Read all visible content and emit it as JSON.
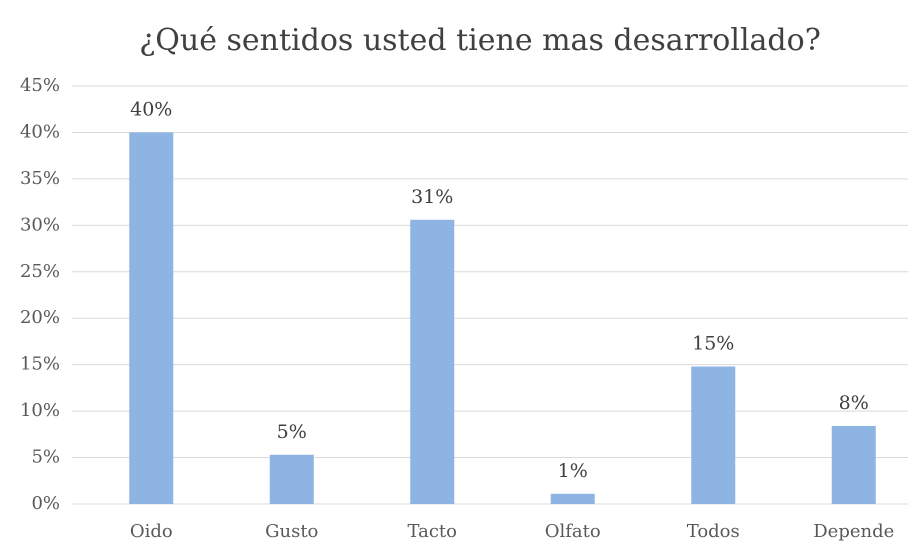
{
  "chart_data": {
    "type": "bar",
    "title": "¿Qué sentidos usted tiene mas desarrollado?",
    "categories": [
      "Oido",
      "Gusto",
      "Tacto",
      "Olfato",
      "Todos",
      "Depende"
    ],
    "values": [
      40,
      5.3,
      30.6,
      1.1,
      14.8,
      8.4
    ],
    "value_labels": [
      "40%",
      "5%",
      "31%",
      "1%",
      "15%",
      "8%"
    ],
    "color": "#8eb4e3",
    "ylim": [
      0,
      45
    ],
    "yticks": [
      {
        "value": 0,
        "label": "0%"
      },
      {
        "value": 5,
        "label": "5%"
      },
      {
        "value": 10,
        "label": "10%"
      },
      {
        "value": 15,
        "label": "15%"
      },
      {
        "value": 20,
        "label": "20%"
      },
      {
        "value": 25,
        "label": "25%"
      },
      {
        "value": 30,
        "label": "30%"
      },
      {
        "value": 35,
        "label": "35%"
      },
      {
        "value": 40,
        "label": "40%"
      },
      {
        "value": 45,
        "label": "45%"
      }
    ],
    "grid": true
  }
}
